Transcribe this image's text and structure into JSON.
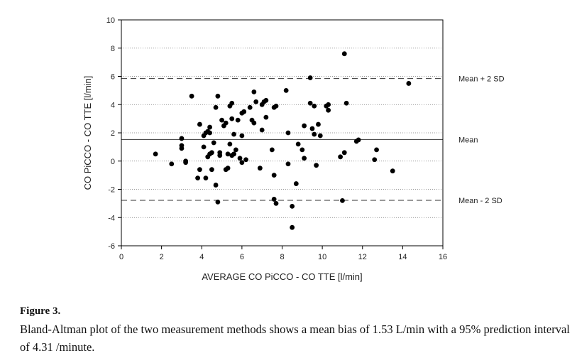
{
  "chart_data": {
    "type": "scatter",
    "xlabel": "AVERAGE CO PiCCO - CO TTE [l/min]",
    "ylabel": "CO PiCCO - CO TTE [l/min]",
    "xlim": [
      0,
      16
    ],
    "ylim": [
      -6,
      10
    ],
    "x_ticks": [
      0,
      2,
      4,
      6,
      8,
      10,
      12,
      14,
      16
    ],
    "y_ticks": [
      -6,
      -4,
      -2,
      0,
      2,
      4,
      6,
      8,
      10
    ],
    "grid": "horizontal dotted",
    "reference_lines": [
      {
        "label": "Mean + 2 SD",
        "y": 5.84,
        "style": "dashed"
      },
      {
        "label": "Mean",
        "y": 1.53,
        "style": "solid"
      },
      {
        "label": "Mean - 2 SD",
        "y": -2.78,
        "style": "dashed"
      }
    ],
    "points": [
      [
        1.7,
        0.5
      ],
      [
        2.5,
        -0.2
      ],
      [
        3.0,
        1.6
      ],
      [
        3.0,
        1.1
      ],
      [
        3.0,
        0.9
      ],
      [
        3.2,
        0.0
      ],
      [
        3.2,
        -0.1
      ],
      [
        3.5,
        4.6
      ],
      [
        3.8,
        -1.2
      ],
      [
        3.9,
        -0.6
      ],
      [
        3.9,
        2.6
      ],
      [
        4.1,
        1.8
      ],
      [
        4.1,
        1.0
      ],
      [
        4.2,
        2.0
      ],
      [
        4.2,
        -1.2
      ],
      [
        4.3,
        0.3
      ],
      [
        4.3,
        2.1
      ],
      [
        4.4,
        2.4
      ],
      [
        4.4,
        2.0
      ],
      [
        4.4,
        0.5
      ],
      [
        4.5,
        0.6
      ],
      [
        4.5,
        -0.6
      ],
      [
        4.6,
        1.3
      ],
      [
        4.7,
        3.8
      ],
      [
        4.7,
        -1.7
      ],
      [
        4.8,
        -2.9
      ],
      [
        4.8,
        4.6
      ],
      [
        4.9,
        0.4
      ],
      [
        4.9,
        0.6
      ],
      [
        5.0,
        2.9
      ],
      [
        5.1,
        2.5
      ],
      [
        5.2,
        2.7
      ],
      [
        5.2,
        -0.6
      ],
      [
        5.3,
        -0.5
      ],
      [
        5.3,
        0.5
      ],
      [
        5.4,
        1.2
      ],
      [
        5.4,
        3.9
      ],
      [
        5.5,
        4.1
      ],
      [
        5.5,
        3.0
      ],
      [
        5.5,
        0.4
      ],
      [
        5.6,
        1.9
      ],
      [
        5.6,
        0.5
      ],
      [
        5.7,
        0.8
      ],
      [
        5.8,
        2.9
      ],
      [
        5.9,
        0.2
      ],
      [
        6.0,
        3.4
      ],
      [
        6.0,
        1.8
      ],
      [
        6.0,
        -0.1
      ],
      [
        6.1,
        3.5
      ],
      [
        6.2,
        0.1
      ],
      [
        6.4,
        3.8
      ],
      [
        6.5,
        2.9
      ],
      [
        6.6,
        4.9
      ],
      [
        6.6,
        2.7
      ],
      [
        6.7,
        4.2
      ],
      [
        6.9,
        -0.5
      ],
      [
        7.0,
        4.0
      ],
      [
        7.0,
        2.2
      ],
      [
        7.1,
        4.2
      ],
      [
        7.2,
        3.1
      ],
      [
        7.2,
        4.3
      ],
      [
        7.5,
        0.8
      ],
      [
        7.6,
        -2.7
      ],
      [
        7.6,
        -1.0
      ],
      [
        7.6,
        3.8
      ],
      [
        7.7,
        3.9
      ],
      [
        7.7,
        -3.0
      ],
      [
        8.2,
        5.0
      ],
      [
        8.3,
        2.0
      ],
      [
        8.3,
        -0.2
      ],
      [
        8.5,
        -3.2
      ],
      [
        8.5,
        -4.7
      ],
      [
        8.7,
        -1.6
      ],
      [
        8.8,
        1.2
      ],
      [
        9.0,
        0.8
      ],
      [
        9.1,
        2.5
      ],
      [
        9.1,
        0.2
      ],
      [
        9.4,
        5.9
      ],
      [
        9.4,
        4.1
      ],
      [
        9.5,
        2.3
      ],
      [
        9.6,
        1.9
      ],
      [
        9.6,
        3.9
      ],
      [
        9.7,
        -0.3
      ],
      [
        9.8,
        2.6
      ],
      [
        9.9,
        1.8
      ],
      [
        10.2,
        3.9
      ],
      [
        10.3,
        4.0
      ],
      [
        10.3,
        3.6
      ],
      [
        10.9,
        0.3
      ],
      [
        11.0,
        -2.8
      ],
      [
        11.1,
        7.6
      ],
      [
        11.1,
        0.6
      ],
      [
        11.2,
        4.1
      ],
      [
        11.7,
        1.4
      ],
      [
        11.8,
        1.5
      ],
      [
        12.6,
        0.1
      ],
      [
        12.7,
        0.8
      ],
      [
        13.5,
        -0.7
      ],
      [
        14.3,
        5.5
      ]
    ]
  },
  "caption": {
    "title": "Figure 3.",
    "body": "Bland-Altman plot of the two measurement methods shows a mean bias of 1.53 L/min with a 95% prediction interval of 4.31 /minute."
  }
}
